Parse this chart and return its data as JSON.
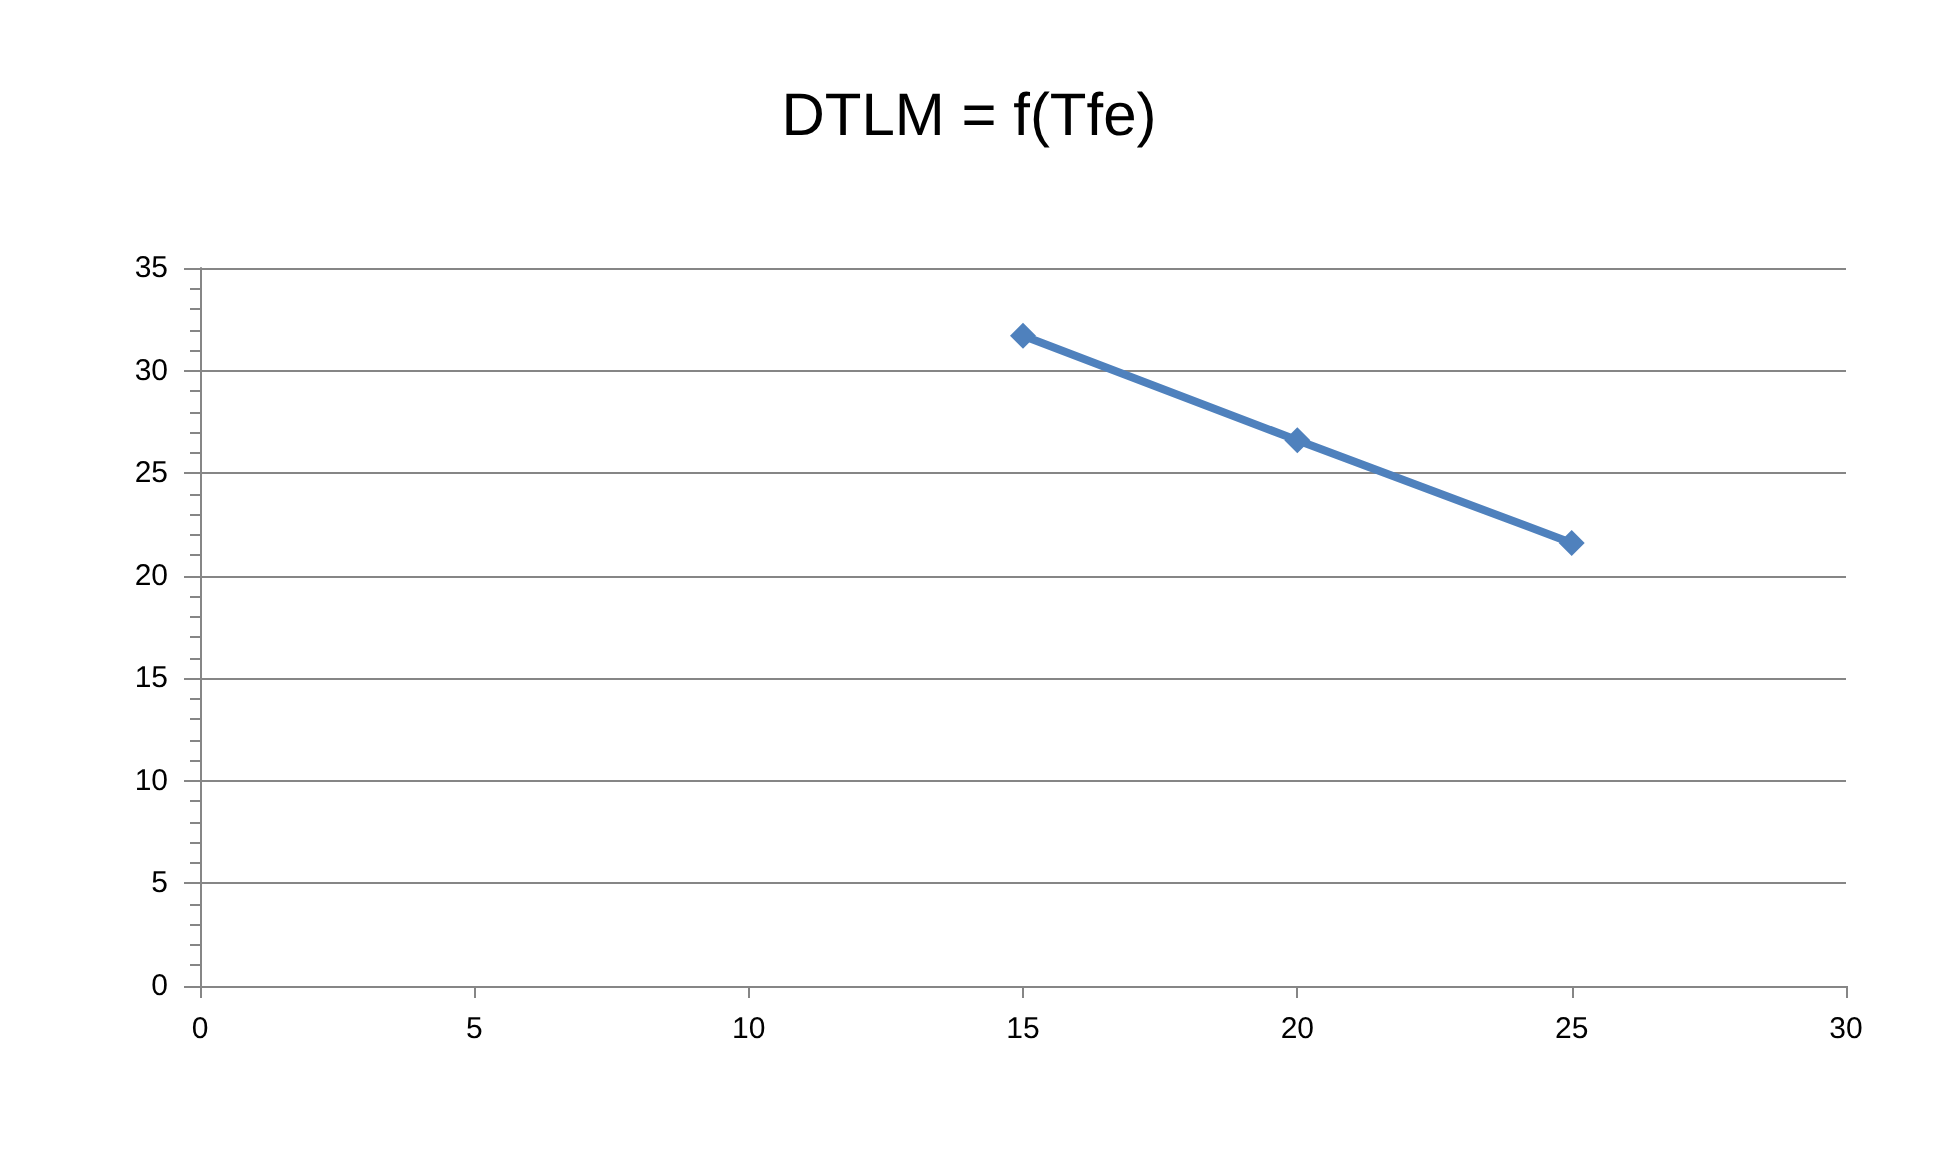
{
  "chart_data": {
    "type": "line",
    "title": "DTLM = f(Tfe)",
    "x": [
      15,
      20,
      25
    ],
    "series": [
      {
        "color": "#4f81bd",
        "values": [
          31.7,
          26.6,
          21.6
        ]
      }
    ],
    "xlim": [
      0,
      30
    ],
    "xticks": [
      0,
      5,
      10,
      15,
      20,
      25,
      30
    ],
    "ylim": [
      0,
      35
    ],
    "yticks": [
      0,
      5,
      10,
      15,
      20,
      25,
      30,
      35
    ],
    "grid": "y",
    "marker": "diamond",
    "line_style": "solid"
  }
}
